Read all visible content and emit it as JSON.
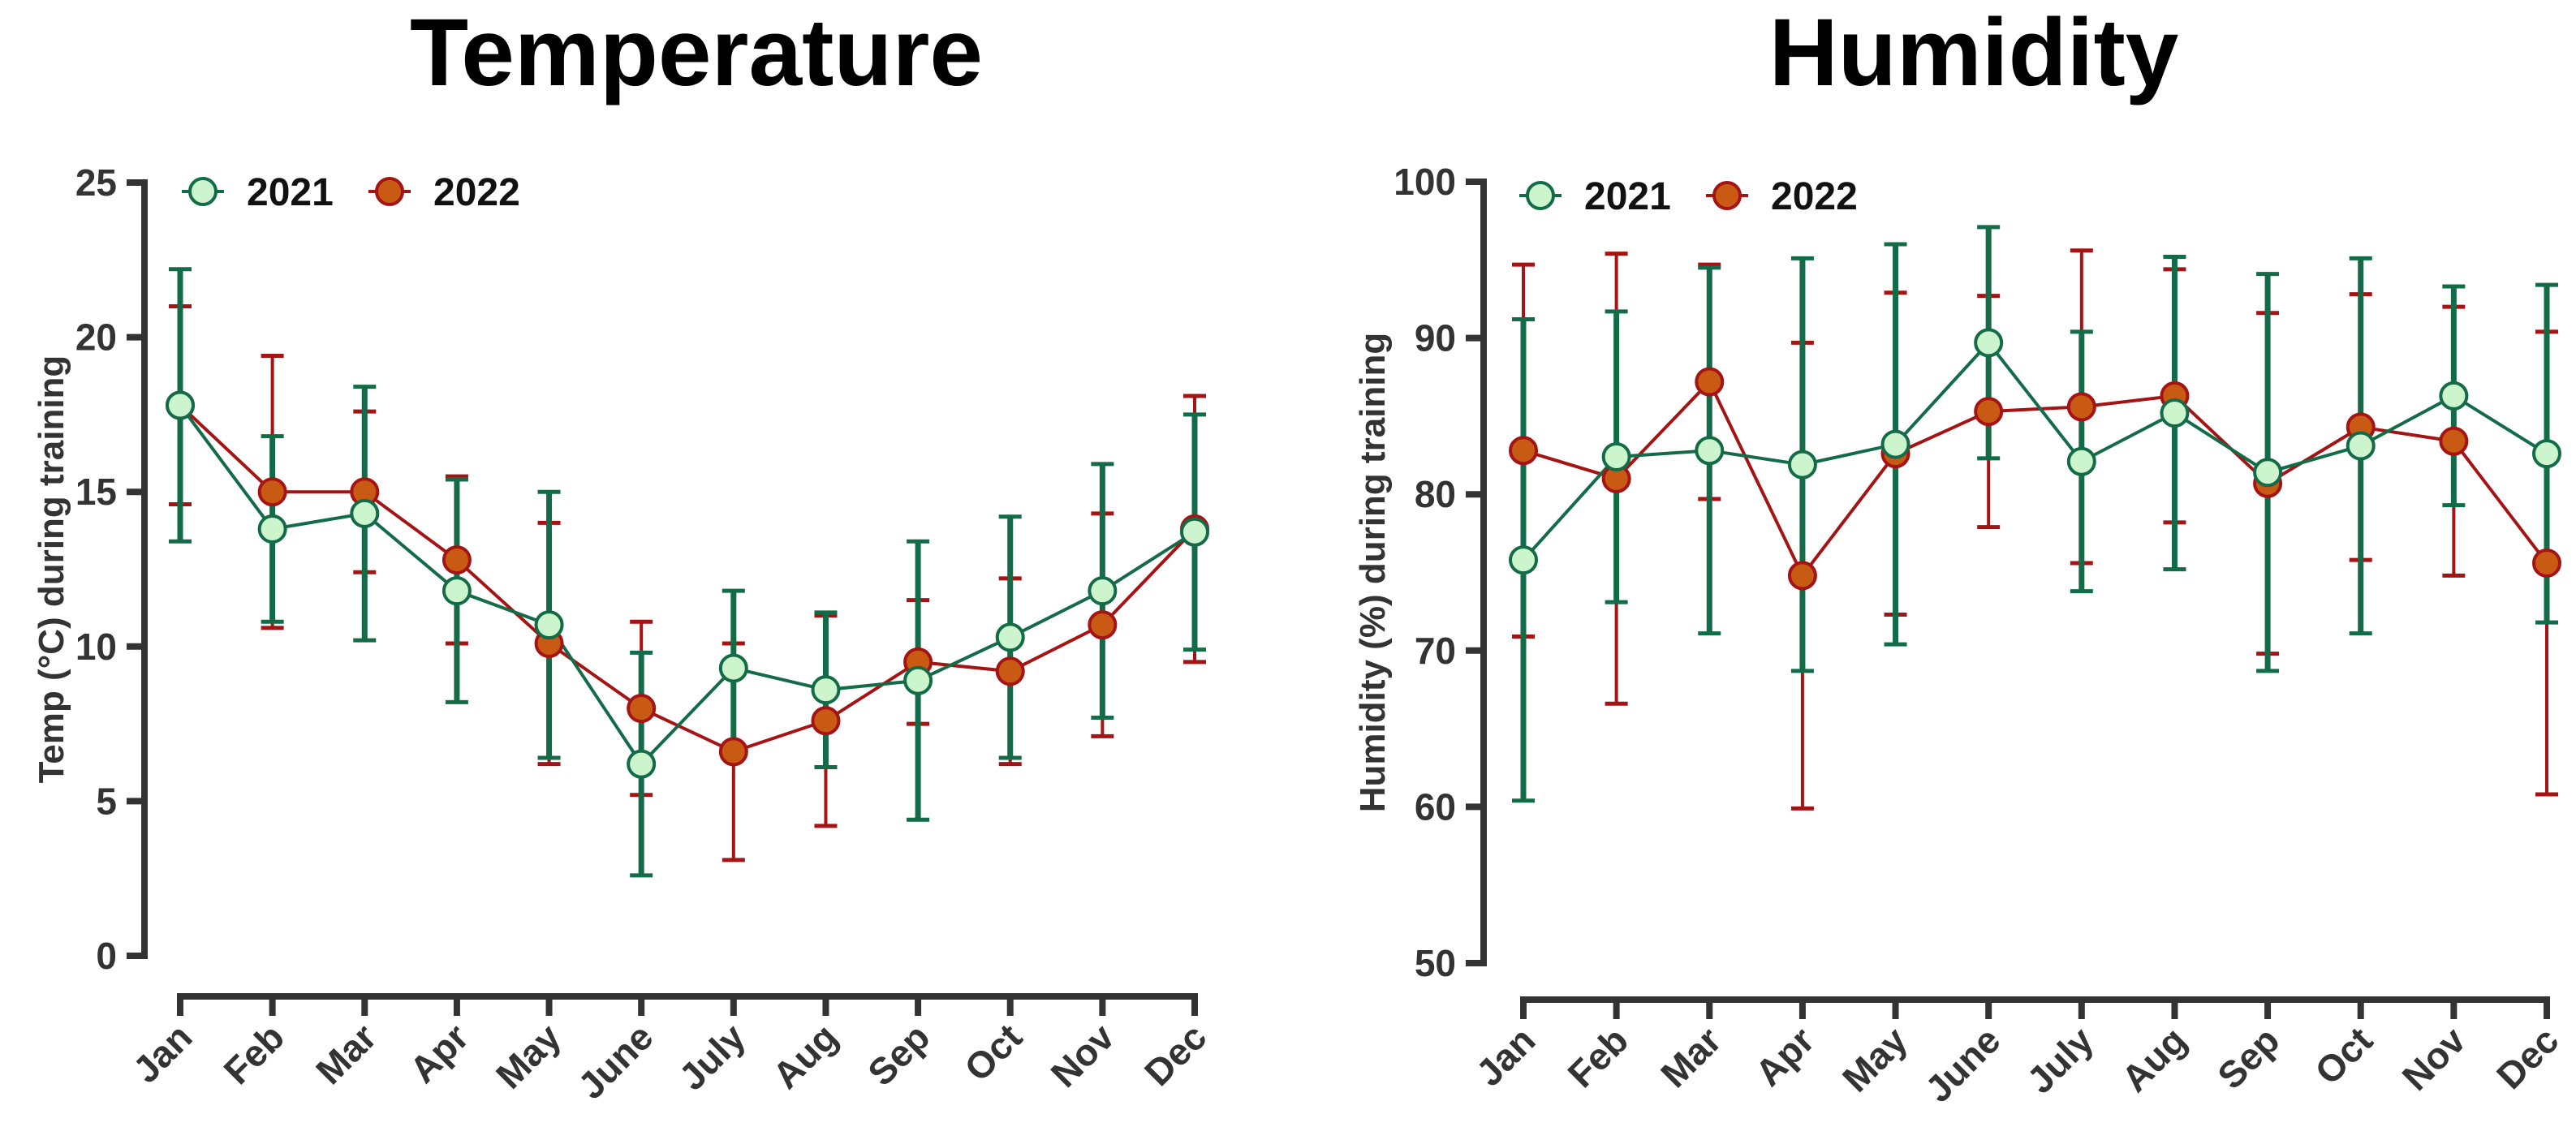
{
  "chart_data": [
    {
      "type": "line",
      "title": "Temperature",
      "xlabel": "",
      "ylabel": "Temp (°C) during training",
      "ylim": [
        0,
        25
      ],
      "yticks": [
        0,
        5,
        10,
        15,
        20,
        25
      ],
      "categories": [
        "Jan",
        "Feb",
        "Mar",
        "Apr",
        "May",
        "June",
        "July",
        "Aug",
        "Sep",
        "Oct",
        "Nov",
        "Dec"
      ],
      "legend": "top-left",
      "series": [
        {
          "name": "2022",
          "color": "#a51414",
          "marker_fill": "#c85a14",
          "values": [
            17.8,
            15.0,
            15.0,
            12.8,
            10.1,
            8.0,
            6.6,
            7.6,
            9.5,
            9.2,
            10.7,
            13.8
          ],
          "err": [
            3.2,
            4.4,
            2.6,
            2.7,
            3.9,
            2.8,
            3.5,
            3.4,
            2.0,
            3.0,
            3.6,
            4.3
          ]
        },
        {
          "name": "2021",
          "color": "#136b47",
          "marker_fill": "#cdf5cd",
          "values": [
            17.8,
            13.8,
            14.3,
            11.8,
            10.7,
            6.2,
            9.3,
            8.6,
            8.9,
            10.3,
            11.8,
            13.7
          ],
          "err": [
            4.4,
            3.0,
            4.1,
            3.6,
            4.3,
            3.6,
            2.5,
            2.5,
            4.5,
            3.9,
            4.1,
            3.8
          ]
        }
      ]
    },
    {
      "type": "line",
      "title": "Humidity",
      "xlabel": "",
      "ylabel": "Humidity (%) during training",
      "ylim": [
        50,
        100
      ],
      "yticks": [
        50,
        60,
        70,
        80,
        90,
        100
      ],
      "categories": [
        "Jan",
        "Feb",
        "Mar",
        "Apr",
        "May",
        "June",
        "July",
        "Aug",
        "Sep",
        "Oct",
        "Nov",
        "Dec"
      ],
      "legend": "top-left",
      "series": [
        {
          "name": "2022",
          "color": "#a51414",
          "marker_fill": "#c85a14",
          "values": [
            82.8,
            81.0,
            87.2,
            74.8,
            82.6,
            85.3,
            85.6,
            86.3,
            80.7,
            84.3,
            83.4,
            75.6
          ],
          "err": [
            11.9,
            14.4,
            7.5,
            14.9,
            10.3,
            7.4,
            10.0,
            8.1,
            10.9,
            8.5,
            8.6,
            14.8
          ]
        },
        {
          "name": "2021",
          "color": "#136b47",
          "marker_fill": "#cdf5cd",
          "values": [
            75.8,
            82.4,
            82.8,
            81.9,
            83.2,
            89.7,
            82.1,
            85.2,
            81.4,
            83.1,
            86.3,
            82.6
          ],
          "err": [
            15.4,
            9.3,
            11.7,
            13.2,
            12.8,
            7.4,
            8.3,
            10.0,
            12.7,
            12.0,
            7.0,
            10.8
          ]
        }
      ]
    }
  ]
}
